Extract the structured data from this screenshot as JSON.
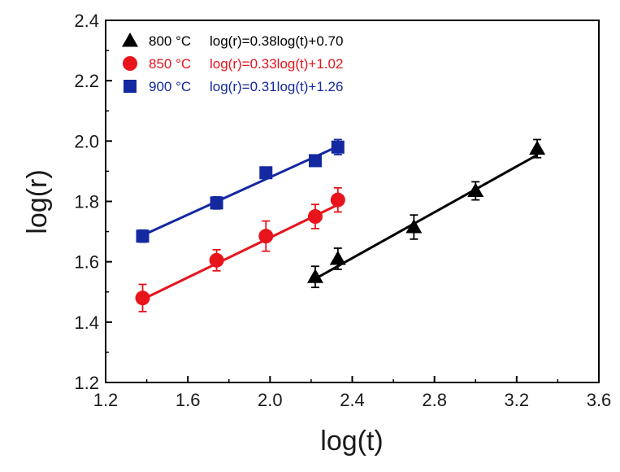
{
  "chart_data": {
    "type": "scatter",
    "xlabel": "log(t)",
    "ylabel": "log(r)",
    "xlim": [
      1.2,
      3.6
    ],
    "ylim": [
      1.2,
      2.4
    ],
    "xticks": [
      "1.2",
      "1.6",
      "2.0",
      "2.4",
      "2.8",
      "3.2",
      "3.6"
    ],
    "yticks": [
      "1.2",
      "1.4",
      "1.6",
      "1.8",
      "2.0",
      "2.2",
      "2.4"
    ],
    "grid": false,
    "legend_position": "top-left",
    "series": [
      {
        "name": "800 °C",
        "equation": "log(r)=0.38log(t)+0.70",
        "color": "#000000",
        "marker": "triangle",
        "x": [
          2.22,
          2.33,
          2.7,
          3.0,
          3.3
        ],
        "y": [
          1.55,
          1.61,
          1.715,
          1.835,
          1.975
        ],
        "err": [
          0.035,
          0.035,
          0.04,
          0.03,
          0.03
        ],
        "fit": {
          "slope": 0.38,
          "intercept": 0.7,
          "x_range": [
            2.22,
            3.3
          ]
        }
      },
      {
        "name": "850 °C",
        "equation": "log(r)=0.33log(t)+1.02",
        "color": "#e8141c",
        "marker": "circle",
        "x": [
          1.38,
          1.74,
          1.98,
          2.22,
          2.33
        ],
        "y": [
          1.48,
          1.605,
          1.685,
          1.75,
          1.805
        ],
        "err": [
          0.045,
          0.035,
          0.05,
          0.04,
          0.04
        ],
        "fit": {
          "slope": 0.33,
          "intercept": 1.02,
          "x_range": [
            1.38,
            2.33
          ]
        }
      },
      {
        "name": "900 °C",
        "equation": "log(r)=0.31log(t)+1.26",
        "color": "#1428a0",
        "marker": "square",
        "x": [
          1.38,
          1.74,
          1.98,
          2.22,
          2.33
        ],
        "y": [
          1.685,
          1.795,
          1.895,
          1.935,
          1.98
        ],
        "err": [
          0.02,
          0.02,
          0.0,
          0.0,
          0.025
        ],
        "fit": {
          "slope": 0.31,
          "intercept": 1.26,
          "x_range": [
            1.38,
            2.33
          ]
        }
      }
    ]
  }
}
